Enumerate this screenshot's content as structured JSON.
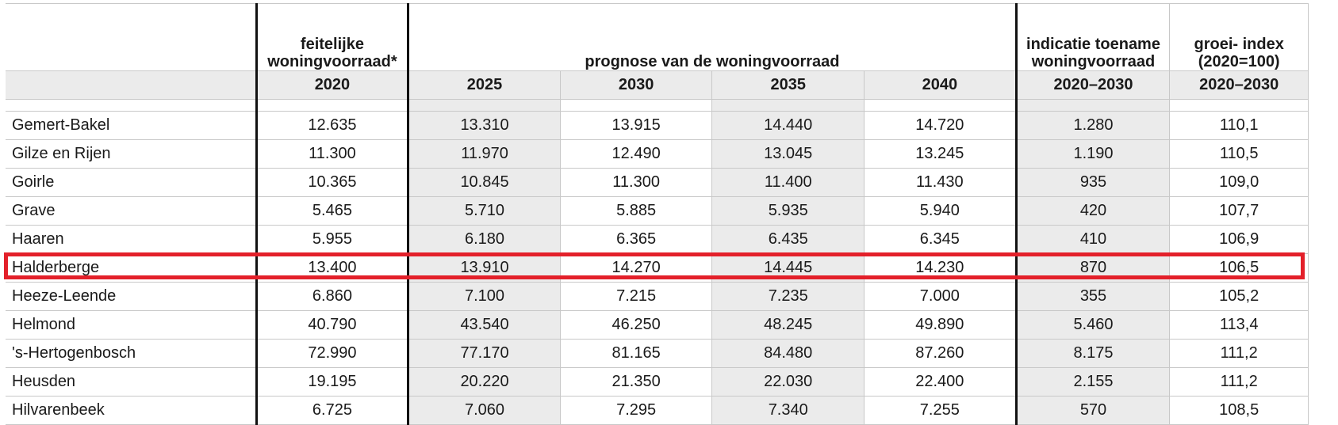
{
  "table": {
    "headers": {
      "col1": "feitelijke woningvoorraad*",
      "prognose": "prognose van de woningvoorraad",
      "toename": "indicatie toename woningvoorraad",
      "groei": "groei- index (2020=100)"
    },
    "years": [
      "2020",
      "2025",
      "2030",
      "2035",
      "2040",
      "2020–2030",
      "2020–2030"
    ],
    "rows": [
      {
        "name": "Gemert-Bakel",
        "values": [
          "12.635",
          "13.310",
          "13.915",
          "14.440",
          "14.720",
          "1.280",
          "110,1"
        ]
      },
      {
        "name": "Gilze en Rijen",
        "values": [
          "11.300",
          "11.970",
          "12.490",
          "13.045",
          "13.245",
          "1.190",
          "110,5"
        ]
      },
      {
        "name": "Goirle",
        "values": [
          "10.365",
          "10.845",
          "11.300",
          "11.400",
          "11.430",
          "935",
          "109,0"
        ]
      },
      {
        "name": "Grave",
        "values": [
          "5.465",
          "5.710",
          "5.885",
          "5.935",
          "5.940",
          "420",
          "107,7"
        ]
      },
      {
        "name": "Haaren",
        "values": [
          "5.955",
          "6.180",
          "6.365",
          "6.435",
          "6.345",
          "410",
          "106,9"
        ]
      },
      {
        "name": "Halderberge",
        "values": [
          "13.400",
          "13.910",
          "14.270",
          "14.445",
          "14.230",
          "870",
          "106,5"
        ]
      },
      {
        "name": "Heeze-Leende",
        "values": [
          "6.860",
          "7.100",
          "7.215",
          "7.235",
          "7.000",
          "355",
          "105,2"
        ]
      },
      {
        "name": "Helmond",
        "values": [
          "40.790",
          "43.540",
          "46.250",
          "48.245",
          "49.890",
          "5.460",
          "113,4"
        ]
      },
      {
        "name": "'s-Hertogenbosch",
        "values": [
          "72.990",
          "77.170",
          "81.165",
          "84.480",
          "87.260",
          "8.175",
          "111,2"
        ]
      },
      {
        "name": "Heusden",
        "values": [
          "19.195",
          "20.220",
          "21.350",
          "22.030",
          "22.400",
          "2.155",
          "111,2"
        ]
      },
      {
        "name": "Hilvarenbeek",
        "values": [
          "6.725",
          "7.060",
          "7.295",
          "7.340",
          "7.255",
          "570",
          "108,5"
        ]
      }
    ],
    "highlighted_row": "Halderberge",
    "highlight_color": "#e3202a"
  }
}
